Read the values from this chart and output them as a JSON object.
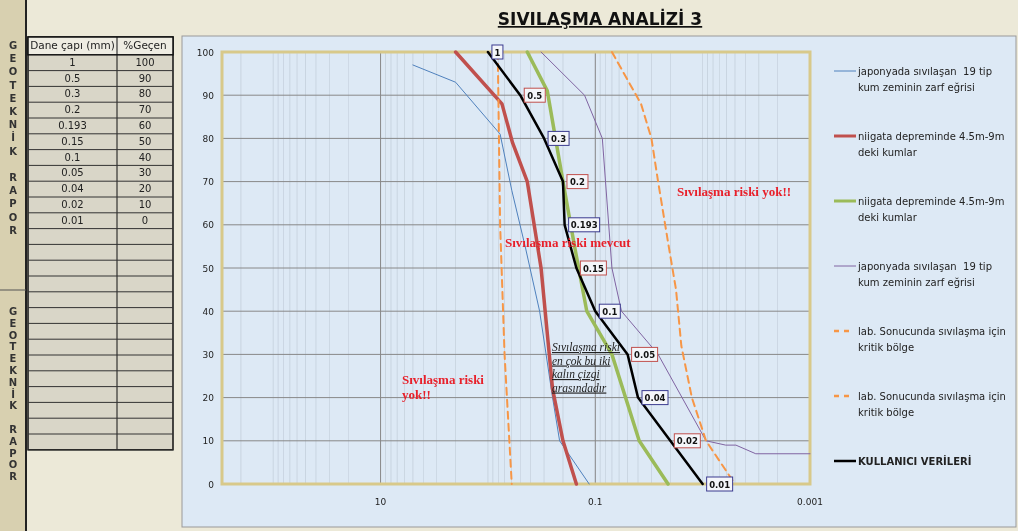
{
  "chart_data": {
    "type": "line",
    "title": "SIVILAŞMA ANALİZİ 3",
    "xlim": [
      300,
      0.001
    ],
    "xticks": [
      10,
      0.1,
      0.001
    ],
    "ylim": [
      0,
      100
    ],
    "yticks": [
      0,
      10,
      20,
      30,
      40,
      50,
      60,
      70,
      80,
      90,
      100
    ],
    "log": "x",
    "grid": true,
    "legend": "right",
    "marker": "none",
    "series": [
      {
        "name": "japonyada sıvılaşan  19 tip kum zeminin zarf eğrisi",
        "color": "#4f81bd",
        "x": [
          5,
          2,
          0.77,
          0.6,
          0.45,
          0.33,
          0.25,
          0.215,
          0.114
        ],
        "values": [
          97,
          93,
          81,
          68,
          55,
          40,
          20,
          10,
          0
        ]
      },
      {
        "name": "niigata depreminde 4.5m-9m deki kumlar",
        "color": "#c0504d",
        "x": [
          2,
          0.74,
          0.59,
          0.43,
          0.32,
          0.25,
          0.2,
          0.15
        ],
        "values": [
          100,
          88,
          79,
          70,
          50,
          22,
          10,
          0
        ]
      },
      {
        "name": "niigata depreminde 4.5m-9m deki kumlar",
        "color": "#9bbb59",
        "x": [
          0.43,
          0.28,
          0.2,
          0.156,
          0.12,
          0.07,
          0.039,
          0.021
        ],
        "values": [
          100,
          91,
          70,
          55,
          40,
          30,
          10,
          0
        ]
      },
      {
        "name": "japonyada sıvılaşan  19 tip kum zeminin zarf eğrisi",
        "color": "#8064a2",
        "x": [
          0.32,
          0.126,
          0.086,
          0.07,
          0.057,
          0.026,
          0.0093,
          0.0061,
          0.0049,
          0.0032,
          0.001
        ],
        "values": [
          100,
          90,
          80,
          50,
          40,
          30,
          10,
          9,
          9,
          7,
          7
        ]
      },
      {
        "name": "lab. Sonucunda sıvılaşma için kritik bölge",
        "color": "#f79646",
        "line_style": "dashed",
        "x": [
          0.81,
          0.77,
          0.7,
          0.6
        ],
        "values": [
          100,
          60,
          30,
          0
        ]
      },
      {
        "name": "lab. Sonucunda sıvılaşma için kritik bölge",
        "color": "#f79646",
        "line_style": "dashed",
        "x": [
          0.07,
          0.0375,
          0.03,
          0.026,
          0.0207,
          0.0177,
          0.0158,
          0.0126,
          0.0093,
          0.005
        ],
        "values": [
          100,
          88,
          80,
          70,
          55,
          45,
          32,
          20,
          10,
          0
        ]
      },
      {
        "name": "KULLANICI VERİLERİ",
        "color": "#000000",
        "x": [
          1,
          0.5,
          0.3,
          0.2,
          0.193,
          0.15,
          0.1,
          0.05,
          0.04,
          0.02,
          0.01
        ],
        "values": [
          100,
          90,
          80,
          70,
          60,
          50,
          40,
          30,
          20,
          10,
          0
        ]
      }
    ],
    "annotations": [
      "Sıvılaşma riski yok!!",
      "Sıvılaşma riski mevcut",
      "Sıvılaşma riski yok!!",
      "Sıvılaşma riski en çok bu iki kalın çizgi arasındadır",
      "GEOTEKNİK RAPOR",
      "GEOTEKNİK RAPOR",
      "Dane çapı (mm)",
      "%Geçen",
      "1",
      "100",
      "0.5",
      "90",
      "0.3",
      "80",
      "0.2",
      "70",
      "0.193",
      "60",
      "0.15",
      "50",
      "0.1",
      "40",
      "0.05",
      "30",
      "0.04",
      "20",
      "0.02",
      "10",
      "0.01",
      "0",
      {
        "text": "1",
        "x": 1,
        "y": 100
      },
      {
        "text": "0.5",
        "x": 0.5,
        "y": 90
      },
      {
        "text": "0.3",
        "x": 0.3,
        "y": 80
      },
      {
        "text": "0.2",
        "x": 0.2,
        "y": 70
      },
      {
        "text": "0.193",
        "x": 0.193,
        "y": 60
      },
      {
        "text": "0.15",
        "x": 0.15,
        "y": 50
      },
      {
        "text": "0.1",
        "x": 0.1,
        "y": 40
      },
      {
        "text": "0.05",
        "x": 0.05,
        "y": 30
      },
      {
        "text": "0.04",
        "x": 0.04,
        "y": 20
      },
      {
        "text": "0.02",
        "x": 0.02,
        "y": 10
      },
      {
        "text": "0.01",
        "x": 0.01,
        "y": 0
      }
    ]
  }
}
